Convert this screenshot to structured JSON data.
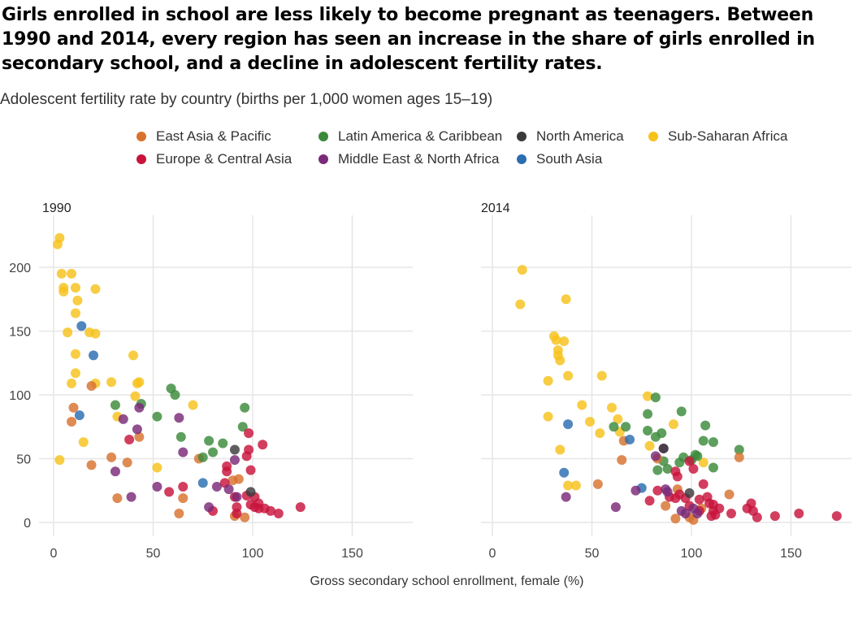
{
  "title": "Girls enrolled in school are less likely to become pregnant as teenagers. Between 1990 and 2014, every region has seen an increase in the share of girls enrolled in secondary school, and a decline in adolescent fertility rates.",
  "subtitle": "Adolescent fertility rate by country (births per 1,000 women ages 15–19)",
  "legend": [
    {
      "label": "East Asia & Pacific",
      "color": "#D8722E"
    },
    {
      "label": "Latin America & Caribbean",
      "color": "#3A8A3A"
    },
    {
      "label": "North America",
      "color": "#3A3A3A"
    },
    {
      "label": "Sub-Saharan Africa",
      "color": "#F7C21B"
    },
    {
      "label": "Europe & Central Asia",
      "color": "#C8143C"
    },
    {
      "label": "Middle East & North Africa",
      "color": "#7A2A78"
    },
    {
      "label": "South Asia",
      "color": "#2A6DB0"
    }
  ],
  "chart_data": {
    "type": "scatter",
    "xlabel": "Gross secondary school enrollment, female (%)",
    "ylabel": "",
    "xlim": [
      0,
      180
    ],
    "ylim": [
      0,
      230
    ],
    "xticks": [
      0,
      50,
      100,
      150
    ],
    "yticks": [
      0,
      50,
      100,
      150,
      200
    ],
    "grid": true,
    "legend_position": "top",
    "panels": [
      {
        "label": "1990",
        "series": [
          {
            "name": "Sub-Saharan Africa",
            "color": "#F7C21B",
            "points": [
              [
                2,
                218
              ],
              [
                3,
                223
              ],
              [
                4,
                195
              ],
              [
                5,
                184
              ],
              [
                5,
                181
              ],
              [
                9,
                195
              ],
              [
                11,
                184
              ],
              [
                12,
                174
              ],
              [
                11,
                164
              ],
              [
                7,
                149
              ],
              [
                18,
                149
              ],
              [
                21,
                148
              ],
              [
                11,
                132
              ],
              [
                11,
                117
              ],
              [
                21,
                183
              ],
              [
                9,
                109
              ],
              [
                21,
                109
              ],
              [
                29,
                110
              ],
              [
                40,
                131
              ],
              [
                42,
                109
              ],
              [
                43,
                110
              ],
              [
                41,
                99
              ],
              [
                32,
                83
              ],
              [
                15,
                63
              ],
              [
                3,
                49
              ],
              [
                52,
                43
              ],
              [
                70,
                92
              ]
            ]
          },
          {
            "name": "East Asia & Pacific",
            "color": "#D8722E",
            "points": [
              [
                19,
                107
              ],
              [
                10,
                90
              ],
              [
                9,
                79
              ],
              [
                29,
                51
              ],
              [
                43,
                67
              ],
              [
                37,
                47
              ],
              [
                19,
                45
              ],
              [
                32,
                19
              ],
              [
                63,
                7
              ],
              [
                65,
                19
              ],
              [
                73,
                50
              ],
              [
                91,
                5
              ],
              [
                96,
                4
              ],
              [
                90,
                33
              ],
              [
                93,
                34
              ]
            ]
          },
          {
            "name": "Latin America & Caribbean",
            "color": "#3A8A3A",
            "points": [
              [
                59,
                105
              ],
              [
                61,
                100
              ],
              [
                31,
                92
              ],
              [
                44,
                93
              ],
              [
                52,
                83
              ],
              [
                64,
                67
              ],
              [
                78,
                64
              ],
              [
                85,
                62
              ],
              [
                80,
                55
              ],
              [
                95,
                75
              ],
              [
                96,
                90
              ],
              [
                75,
                51
              ]
            ]
          },
          {
            "name": "Europe & Central Asia",
            "color": "#C8143C",
            "points": [
              [
                38,
                65
              ],
              [
                58,
                24
              ],
              [
                65,
                28
              ],
              [
                80,
                9
              ],
              [
                86,
                31
              ],
              [
                87,
                44
              ],
              [
                87,
                40
              ],
              [
                91,
                20
              ],
              [
                92,
                12
              ],
              [
                92,
                7
              ],
              [
                97,
                21
              ],
              [
                97,
                52
              ],
              [
                98,
                57
              ],
              [
                98,
                70
              ],
              [
                99,
                41
              ],
              [
                99,
                14
              ],
              [
                101,
                12
              ],
              [
                101,
                20
              ],
              [
                103,
                15
              ],
              [
                103,
                11
              ],
              [
                106,
                11
              ],
              [
                109,
                9
              ],
              [
                113,
                7
              ],
              [
                105,
                61
              ],
              [
                124,
                12
              ]
            ]
          },
          {
            "name": "Middle East & North Africa",
            "color": "#7A2A78",
            "points": [
              [
                35,
                81
              ],
              [
                42,
                73
              ],
              [
                43,
                90
              ],
              [
                63,
                82
              ],
              [
                31,
                40
              ],
              [
                39,
                20
              ],
              [
                52,
                28
              ],
              [
                65,
                55
              ],
              [
                82,
                28
              ],
              [
                78,
                12
              ],
              [
                88,
                26
              ],
              [
                91,
                49
              ],
              [
                92,
                20
              ]
            ]
          },
          {
            "name": "South Asia",
            "color": "#2A6DB0",
            "points": [
              [
                14,
                154
              ],
              [
                20,
                131
              ],
              [
                13,
                84
              ],
              [
                75,
                31
              ]
            ]
          },
          {
            "name": "North America",
            "color": "#3A3A3A",
            "points": [
              [
                91,
                57
              ],
              [
                99,
                24
              ]
            ]
          }
        ]
      },
      {
        "label": "2014",
        "series": [
          {
            "name": "Sub-Saharan Africa",
            "color": "#F7C21B",
            "points": [
              [
                15,
                198
              ],
              [
                14,
                171
              ],
              [
                37,
                175
              ],
              [
                31,
                146
              ],
              [
                32,
                143
              ],
              [
                36,
                142
              ],
              [
                33,
                135
              ],
              [
                33,
                131
              ],
              [
                34,
                127
              ],
              [
                38,
                115
              ],
              [
                28,
                111
              ],
              [
                55,
                115
              ],
              [
                28,
                83
              ],
              [
                45,
                92
              ],
              [
                49,
                79
              ],
              [
                54,
                70
              ],
              [
                60,
                90
              ],
              [
                63,
                81
              ],
              [
                64,
                71
              ],
              [
                34,
                57
              ],
              [
                38,
                29
              ],
              [
                42,
                29
              ],
              [
                78,
                99
              ],
              [
                79,
                60
              ],
              [
                91,
                77
              ],
              [
                106,
                47
              ]
            ]
          },
          {
            "name": "Latin America & Caribbean",
            "color": "#3A8A3A",
            "points": [
              [
                82,
                98
              ],
              [
                78,
                85
              ],
              [
                95,
                87
              ],
              [
                61,
                75
              ],
              [
                67,
                75
              ],
              [
                78,
                72
              ],
              [
                82,
                67
              ],
              [
                85,
                70
              ],
              [
                86,
                48
              ],
              [
                88,
                42
              ],
              [
                83,
                41
              ],
              [
                94,
                47
              ],
              [
                96,
                51
              ],
              [
                100,
                49
              ],
              [
                102,
                53
              ],
              [
                103,
                52
              ],
              [
                107,
                76
              ],
              [
                106,
                64
              ],
              [
                111,
                63
              ],
              [
                111,
                43
              ],
              [
                124,
                57
              ]
            ]
          },
          {
            "name": "East Asia & Pacific",
            "color": "#D8722E",
            "points": [
              [
                66,
                64
              ],
              [
                65,
                49
              ],
              [
                83,
                50
              ],
              [
                53,
                30
              ],
              [
                87,
                13
              ],
              [
                93,
                26
              ],
              [
                92,
                3
              ],
              [
                99,
                4
              ],
              [
                101,
                2
              ],
              [
                105,
                11
              ],
              [
                119,
                22
              ],
              [
                124,
                51
              ]
            ]
          },
          {
            "name": "South Asia",
            "color": "#2A6DB0",
            "points": [
              [
                38,
                77
              ],
              [
                36,
                39
              ],
              [
                69,
                65
              ],
              [
                75,
                27
              ]
            ]
          },
          {
            "name": "Europe & Central Asia",
            "color": "#C8143C",
            "points": [
              [
                79,
                17
              ],
              [
                83,
                25
              ],
              [
                89,
                20
              ],
              [
                92,
                40
              ],
              [
                93,
                36
              ],
              [
                92,
                19
              ],
              [
                94,
                22
              ],
              [
                97,
                19
              ],
              [
                99,
                13
              ],
              [
                99,
                48
              ],
              [
                101,
                42
              ],
              [
                104,
                18
              ],
              [
                104,
                9
              ],
              [
                106,
                30
              ],
              [
                108,
                20
              ],
              [
                109,
                15
              ],
              [
                111,
                14
              ],
              [
                110,
                5
              ],
              [
                111,
                9
              ],
              [
                112,
                6
              ],
              [
                114,
                11
              ],
              [
                120,
                7
              ],
              [
                128,
                11
              ],
              [
                130,
                15
              ],
              [
                131,
                9
              ],
              [
                133,
                4
              ],
              [
                142,
                5
              ],
              [
                154,
                7
              ],
              [
                173,
                5
              ]
            ]
          },
          {
            "name": "Middle East & North Africa",
            "color": "#7A2A78",
            "points": [
              [
                37,
                20
              ],
              [
                62,
                12
              ],
              [
                72,
                25
              ],
              [
                82,
                52
              ],
              [
                86,
                58
              ],
              [
                87,
                26
              ],
              [
                88,
                24
              ],
              [
                95,
                9
              ],
              [
                97,
                7
              ],
              [
                101,
                11
              ],
              [
                103,
                7
              ]
            ]
          },
          {
            "name": "North America",
            "color": "#3A3A3A",
            "points": [
              [
                86,
                58
              ],
              [
                99,
                23
              ]
            ]
          }
        ]
      }
    ]
  }
}
